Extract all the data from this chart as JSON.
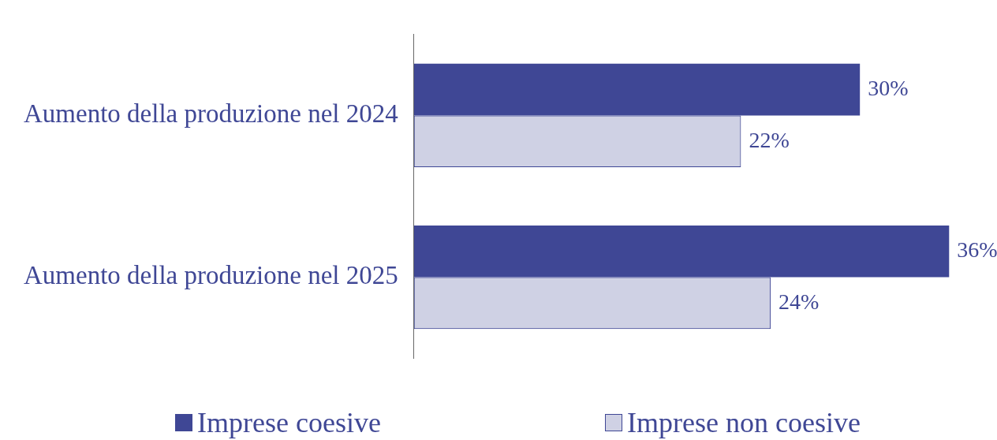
{
  "chart_data": {
    "type": "bar",
    "orientation": "horizontal",
    "categories": [
      "Aumento della produzione nel 2024",
      "Aumento della produzione nel 2025"
    ],
    "series": [
      {
        "name": "Imprese coesive",
        "color": "#3f4795",
        "values": [
          30,
          36
        ],
        "value_labels": [
          "30%",
          "36%"
        ]
      },
      {
        "name": "Imprese non coesive",
        "color": "#3f4795",
        "values": [
          22,
          24
        ],
        "value_labels": [
          "22%",
          "24%"
        ]
      }
    ],
    "legend": "bottom"
  }
}
